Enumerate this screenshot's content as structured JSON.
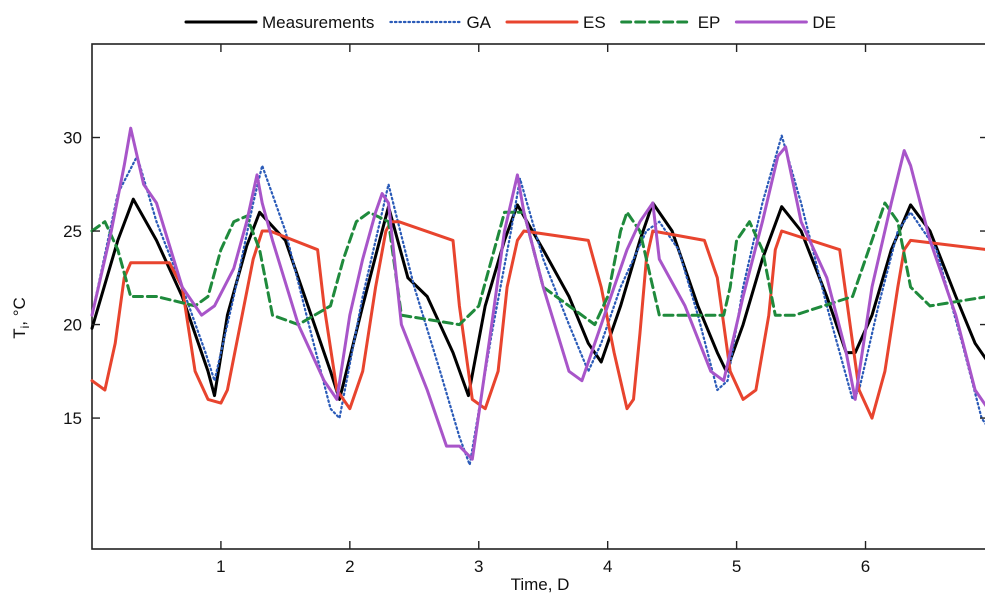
{
  "chart_data": {
    "type": "line",
    "title": "",
    "xlabel": "Time, D",
    "ylabel_main": "T",
    "ylabel_sub": "i",
    "ylabel_unit": ", °C",
    "xlim": [
      0.0,
      6.95
    ],
    "ylim": [
      8.0,
      35.0
    ],
    "xticks": [
      "1",
      "2",
      "3",
      "4",
      "5",
      "6"
    ],
    "yticks": [
      "15",
      "20",
      "25",
      "30"
    ],
    "legend_position": "top",
    "grid": false,
    "series": [
      {
        "name": "Measurements",
        "color": "#000000",
        "dash": "solid",
        "x": [
          0.0,
          0.2,
          0.32,
          0.5,
          0.7,
          0.9,
          0.95,
          1.05,
          1.2,
          1.3,
          1.5,
          1.7,
          1.85,
          1.92,
          2.1,
          2.25,
          2.3,
          2.45,
          2.6,
          2.8,
          2.92,
          3.05,
          3.2,
          3.3,
          3.5,
          3.7,
          3.85,
          3.95,
          4.1,
          4.25,
          4.35,
          4.5,
          4.7,
          4.85,
          4.92,
          5.05,
          5.2,
          5.35,
          5.5,
          5.7,
          5.85,
          5.92,
          6.05,
          6.2,
          6.35,
          6.5,
          6.7,
          6.85,
          6.95
        ],
        "y": [
          19.8,
          24.5,
          26.7,
          24.5,
          21.5,
          17.5,
          16.2,
          20.5,
          24.2,
          26.0,
          24.5,
          20.5,
          17.5,
          16.0,
          21.0,
          25.0,
          26.3,
          22.5,
          21.5,
          18.5,
          16.2,
          21.0,
          24.5,
          26.4,
          24.0,
          21.5,
          19.0,
          18.0,
          21.0,
          24.5,
          26.5,
          25.0,
          21.0,
          18.5,
          17.5,
          20.0,
          23.5,
          26.3,
          25.0,
          21.5,
          18.5,
          18.5,
          20.5,
          24.0,
          26.4,
          25.0,
          21.5,
          19.0,
          18.0
        ]
      },
      {
        "name": "GA",
        "color": "#2b5bb8",
        "dash": "dotted",
        "x": [
          0.0,
          0.2,
          0.35,
          0.5,
          0.7,
          0.88,
          0.95,
          1.1,
          1.25,
          1.32,
          1.5,
          1.7,
          1.85,
          1.92,
          2.1,
          2.25,
          2.3,
          2.5,
          2.7,
          2.85,
          2.93,
          3.1,
          3.25,
          3.32,
          3.5,
          3.7,
          3.85,
          3.95,
          4.1,
          4.3,
          4.4,
          4.55,
          4.7,
          4.85,
          4.93,
          5.05,
          5.2,
          5.35,
          5.5,
          5.7,
          5.9,
          5.95,
          6.1,
          6.25,
          6.35,
          6.55,
          6.75,
          6.9,
          6.95
        ],
        "y": [
          20.5,
          27.0,
          29.0,
          25.5,
          22.0,
          18.5,
          17.0,
          21.5,
          26.5,
          28.5,
          25.0,
          19.5,
          15.5,
          15.0,
          21.5,
          26.0,
          27.5,
          22.0,
          17.5,
          14.0,
          12.5,
          19.5,
          25.0,
          27.8,
          23.5,
          20.0,
          17.5,
          19.0,
          22.0,
          25.0,
          25.5,
          24.0,
          20.5,
          16.5,
          17.0,
          22.0,
          26.5,
          30.1,
          26.5,
          21.0,
          16.0,
          16.5,
          21.0,
          25.0,
          26.0,
          24.0,
          19.0,
          15.0,
          14.5
        ]
      },
      {
        "name": "ES",
        "color": "#e8442e",
        "dash": "solid",
        "x": [
          0.0,
          0.1,
          0.18,
          0.25,
          0.3,
          0.6,
          0.7,
          0.8,
          0.9,
          1.0,
          1.05,
          1.15,
          1.25,
          1.32,
          1.38,
          1.75,
          1.8,
          1.9,
          2.0,
          2.1,
          2.2,
          2.28,
          2.32,
          2.38,
          2.8,
          2.85,
          2.95,
          3.05,
          3.15,
          3.22,
          3.3,
          3.35,
          3.85,
          3.95,
          4.05,
          4.15,
          4.2,
          4.25,
          4.3,
          4.35,
          4.75,
          4.85,
          4.95,
          5.05,
          5.15,
          5.25,
          5.3,
          5.35,
          5.8,
          5.85,
          5.95,
          6.05,
          6.15,
          6.25,
          6.3,
          6.35,
          6.95
        ],
        "y": [
          17.0,
          16.5,
          19.0,
          22.5,
          23.3,
          23.3,
          22.0,
          17.5,
          16.0,
          15.8,
          16.5,
          20.0,
          23.5,
          25.0,
          25.0,
          24.0,
          21.0,
          16.5,
          15.5,
          17.5,
          22.0,
          25.0,
          25.5,
          25.5,
          24.5,
          21.0,
          16.0,
          15.5,
          17.5,
          22.0,
          24.5,
          25.0,
          24.5,
          22.0,
          18.5,
          15.5,
          16.0,
          19.5,
          23.5,
          25.0,
          24.5,
          22.5,
          17.5,
          16.0,
          16.5,
          20.5,
          24.0,
          25.0,
          24.0,
          21.5,
          16.5,
          15.0,
          17.5,
          22.0,
          24.0,
          24.5,
          24.0
        ]
      },
      {
        "name": "EP",
        "color": "#1f8a3c",
        "dash": "dashed",
        "x": [
          0.0,
          0.1,
          0.2,
          0.3,
          0.5,
          0.8,
          0.9,
          1.0,
          1.1,
          1.2,
          1.3,
          1.4,
          1.6,
          1.85,
          1.95,
          2.05,
          2.15,
          2.3,
          2.4,
          2.85,
          3.0,
          3.1,
          3.2,
          3.35,
          3.5,
          3.9,
          4.0,
          4.1,
          4.15,
          4.25,
          4.4,
          4.9,
          4.95,
          5.0,
          5.1,
          5.2,
          5.3,
          5.45,
          5.9,
          6.0,
          6.1,
          6.15,
          6.25,
          6.35,
          6.5,
          6.95
        ],
        "y": [
          25.0,
          25.5,
          24.0,
          21.5,
          21.5,
          21.0,
          21.5,
          24.0,
          25.5,
          25.8,
          24.0,
          20.5,
          20.0,
          21.0,
          23.5,
          25.5,
          26.0,
          25.5,
          20.5,
          20.0,
          21.0,
          23.5,
          26.0,
          26.0,
          22.0,
          20.0,
          21.5,
          25.0,
          26.0,
          25.0,
          20.5,
          20.5,
          22.0,
          24.5,
          25.5,
          24.0,
          20.5,
          20.5,
          21.5,
          23.5,
          25.5,
          26.5,
          25.5,
          22.0,
          21.0,
          21.5
        ]
      },
      {
        "name": "DE",
        "color": "#a855c9",
        "dash": "solid",
        "x": [
          0.0,
          0.15,
          0.25,
          0.3,
          0.4,
          0.5,
          0.7,
          0.85,
          0.95,
          1.1,
          1.2,
          1.28,
          1.32,
          1.4,
          1.6,
          1.8,
          1.9,
          2.0,
          2.1,
          2.2,
          2.25,
          2.3,
          2.4,
          2.6,
          2.75,
          2.85,
          2.95,
          3.1,
          3.2,
          3.3,
          3.35,
          3.5,
          3.7,
          3.8,
          3.9,
          4.05,
          4.15,
          4.25,
          4.35,
          4.4,
          4.6,
          4.8,
          4.9,
          5.05,
          5.2,
          5.32,
          5.38,
          5.5,
          5.7,
          5.85,
          5.92,
          6.05,
          6.2,
          6.3,
          6.35,
          6.5,
          6.7,
          6.85,
          6.95
        ],
        "y": [
          20.5,
          25.0,
          28.5,
          30.5,
          27.5,
          26.5,
          22.0,
          20.5,
          21.0,
          23.0,
          25.5,
          28.0,
          26.5,
          24.5,
          20.0,
          17.0,
          16.0,
          20.5,
          23.5,
          26.0,
          27.0,
          26.5,
          20.0,
          16.5,
          13.5,
          13.5,
          12.8,
          20.0,
          25.0,
          28.0,
          26.0,
          22.0,
          17.5,
          17.0,
          19.0,
          22.0,
          24.0,
          25.5,
          26.5,
          23.5,
          21.0,
          17.5,
          17.0,
          21.5,
          25.5,
          29.0,
          29.5,
          25.5,
          22.5,
          18.5,
          16.0,
          22.0,
          26.5,
          29.3,
          28.5,
          24.5,
          20.5,
          16.5,
          15.5
        ]
      }
    ]
  }
}
